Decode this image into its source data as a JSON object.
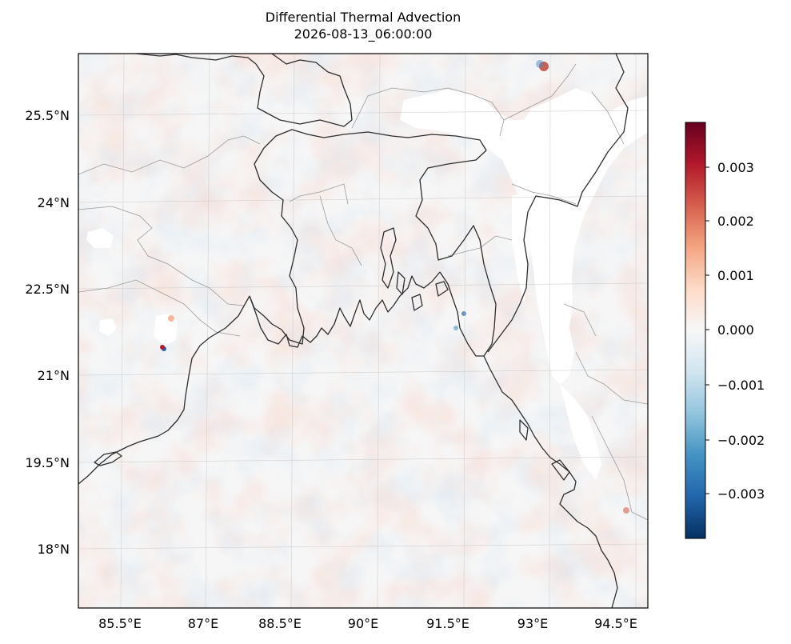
{
  "title": "Differential Thermal Advection",
  "subtitle": "2026-08-13_06:00:00",
  "map": {
    "lon_range": [
      84.5,
      94.8
    ],
    "lat_range": [
      16.9,
      26.7
    ],
    "lat_labels": [
      "25.5°N",
      "24°N",
      "22.5°N",
      "21°N",
      "19.5°N",
      "18°N"
    ],
    "lat_values": [
      25.5,
      24,
      22.5,
      21,
      19.5,
      18
    ],
    "lon_labels": [
      "85.5°E",
      "87°E",
      "88.5°E",
      "90°E",
      "91.5°E",
      "93°E",
      "94.5°E"
    ],
    "lon_values": [
      85.5,
      87,
      88.5,
      90,
      91.5,
      93,
      94.5
    ]
  },
  "colorbar": {
    "colormap": "RdBu_r",
    "range": [
      -0.0038,
      0.0038
    ],
    "tick_labels": [
      "0.003",
      "0.002",
      "0.001",
      "0.000",
      "−0.001",
      "−0.002",
      "−0.003"
    ],
    "tick_values": [
      0.003,
      0.002,
      0.001,
      0.0,
      -0.001,
      -0.002,
      -0.003
    ],
    "colors": [
      "#67001f",
      "#b2182b",
      "#d6604d",
      "#f4a582",
      "#fddbc7",
      "#f7f7f7",
      "#d1e5f0",
      "#92c5de",
      "#4393c3",
      "#2166ac",
      "#053061"
    ]
  }
}
